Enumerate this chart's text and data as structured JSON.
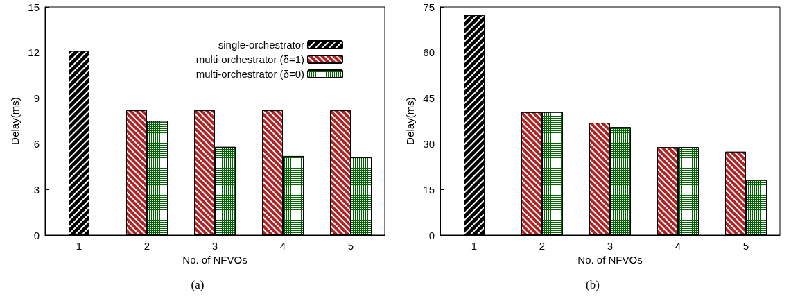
{
  "chart_data": [
    {
      "type": "bar",
      "title": "(a)",
      "xlabel": "No. of NFVOs",
      "ylabel": "Delay(ms)",
      "categories": [
        "1",
        "2",
        "3",
        "4",
        "5"
      ],
      "series": [
        {
          "name": "single-orchestrator",
          "color": "#000000",
          "values": [
            12.1,
            null,
            null,
            null,
            null
          ]
        },
        {
          "name": "multi-orchestrator (δ=1)",
          "color": "#b22222",
          "values": [
            null,
            8.2,
            8.2,
            8.2,
            8.2
          ]
        },
        {
          "name": "multi-orchestrator (δ=0)",
          "color": "#006400",
          "values": [
            null,
            7.5,
            5.8,
            5.2,
            5.1
          ]
        }
      ],
      "ylim": [
        0,
        15
      ],
      "yticks": [
        0,
        3,
        6,
        9,
        12,
        15
      ],
      "grid": false,
      "legend": "top right"
    },
    {
      "type": "bar",
      "title": "(b)",
      "xlabel": "No. of NFVOs",
      "ylabel": "Delay(ms)",
      "categories": [
        "1",
        "2",
        "3",
        "4",
        "5"
      ],
      "series": [
        {
          "color": "#000000",
          "values": [
            72.3,
            null,
            null,
            null,
            null
          ]
        },
        {
          "color": "#b22222",
          "values": [
            null,
            40.4,
            36.9,
            28.9,
            27.4
          ]
        },
        {
          "color": "#006400",
          "values": [
            null,
            40.4,
            35.5,
            28.9,
            18.2
          ]
        }
      ],
      "ylim": [
        0,
        75
      ],
      "yticks": [
        0,
        15,
        30,
        45,
        60,
        75
      ],
      "grid": false,
      "legend": false
    }
  ]
}
